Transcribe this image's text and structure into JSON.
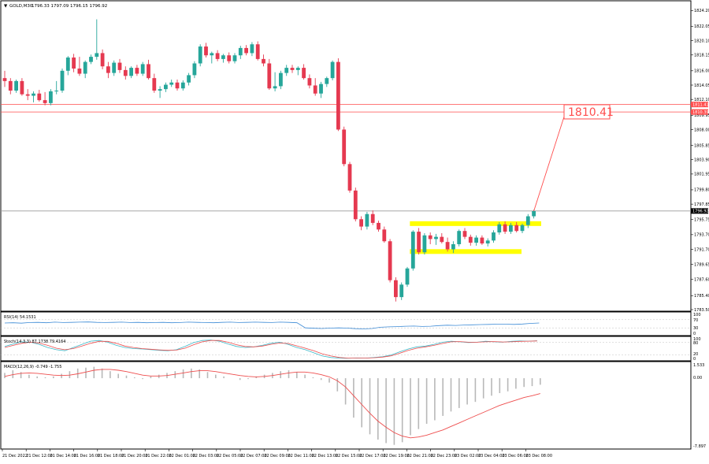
{
  "window": {
    "symbol_label": "GOLD,M30",
    "ohlc_label": "1796.33 1797.09 1796.15 1796.92"
  },
  "price_axis": {
    "ticks": [
      "1824.20",
      "1822.05",
      "1820.10",
      "1818.15",
      "1816.00",
      "1814.05",
      "1812.10",
      "1809.95",
      "1808.00",
      "1805.85",
      "1803.90",
      "1801.95",
      "1799.80",
      "1797.85",
      "1795.75",
      "1793.70",
      "1791.70",
      "1789.65",
      "1787.60",
      "1785.40",
      "1783.50"
    ],
    "current_price_label": "1796.92",
    "resistance_labels": [
      "1811.41",
      "1810.39"
    ]
  },
  "target_label": "1810.41",
  "time_axis": {
    "labels": [
      "21 Dec 2022",
      "21 Dec 12:00",
      "21 Dec 14:00",
      "21 Dec 16:00",
      "21 Dec 18:00",
      "21 Dec 20:00",
      "21 Dec 22:00",
      "22 Dec 01:00",
      "22 Dec 03:00",
      "22 Dec 05:00",
      "22 Dec 07:00",
      "22 Dec 09:00",
      "22 Dec 11:00",
      "22 Dec 13:00",
      "22 Dec 15:00",
      "22 Dec 17:00",
      "22 Dec 19:00",
      "22 Dec 21:00",
      "22 Dec 23:00",
      "23 Dec 02:00",
      "23 Dec 04:00",
      "23 Dec 06:00",
      "23 Dec 08:00"
    ]
  },
  "indicators": {
    "rsi": {
      "label": "RSI(14) 54.1531",
      "levels": [
        "100",
        "70",
        "30",
        "0"
      ]
    },
    "stoch": {
      "label": "Stoch(14,3,3) 87.1738 79.4164",
      "levels": [
        "100",
        "80",
        "20",
        "0"
      ]
    },
    "macd": {
      "label": "MACD(12,26,9) -0.749 -1.755",
      "levels": [
        "1.533",
        "0.00",
        "-7.897"
      ]
    }
  },
  "colors": {
    "bull": "#26a69a",
    "bear": "#e53950",
    "resistance": "#ff4d4d",
    "range_box": "#ffff00",
    "rsi_line": "#3d8bd6",
    "stoch_main": "#3db8c8",
    "stoch_signal": "#ee4d4d",
    "macd_hist": "#b8b8b8",
    "macd_signal": "#ee4d4d"
  },
  "chart_data": {
    "type": "candlestick",
    "symbol": "GOLD",
    "timeframe": "M30",
    "ylim": [
      1783.5,
      1825.2
    ],
    "candles": [
      {
        "o": 1815.0,
        "h": 1816.0,
        "l": 1813.8,
        "c": 1814.6
      },
      {
        "o": 1814.6,
        "h": 1815.0,
        "l": 1812.8,
        "c": 1813.3
      },
      {
        "o": 1813.3,
        "h": 1814.8,
        "l": 1813.0,
        "c": 1814.6
      },
      {
        "o": 1814.6,
        "h": 1815.0,
        "l": 1812.6,
        "c": 1812.8
      },
      {
        "o": 1812.8,
        "h": 1813.5,
        "l": 1812.0,
        "c": 1812.6
      },
      {
        "o": 1812.6,
        "h": 1813.2,
        "l": 1811.7,
        "c": 1812.9
      },
      {
        "o": 1812.9,
        "h": 1813.4,
        "l": 1811.8,
        "c": 1812.0
      },
      {
        "o": 1812.0,
        "h": 1813.1,
        "l": 1811.3,
        "c": 1811.6
      },
      {
        "o": 1811.6,
        "h": 1813.5,
        "l": 1811.3,
        "c": 1813.2
      },
      {
        "o": 1813.2,
        "h": 1814.6,
        "l": 1812.8,
        "c": 1813.3
      },
      {
        "o": 1813.3,
        "h": 1816.3,
        "l": 1813.0,
        "c": 1816.0
      },
      {
        "o": 1816.0,
        "h": 1818.0,
        "l": 1815.4,
        "c": 1817.8
      },
      {
        "o": 1817.8,
        "h": 1818.3,
        "l": 1815.8,
        "c": 1816.3
      },
      {
        "o": 1816.3,
        "h": 1817.9,
        "l": 1815.3,
        "c": 1815.6
      },
      {
        "o": 1815.6,
        "h": 1817.4,
        "l": 1815.0,
        "c": 1817.2
      },
      {
        "o": 1817.2,
        "h": 1818.2,
        "l": 1816.9,
        "c": 1817.9
      },
      {
        "o": 1817.9,
        "h": 1823.0,
        "l": 1817.5,
        "c": 1818.4
      },
      {
        "o": 1818.4,
        "h": 1818.9,
        "l": 1816.2,
        "c": 1816.6
      },
      {
        "o": 1816.6,
        "h": 1817.2,
        "l": 1815.0,
        "c": 1815.7
      },
      {
        "o": 1815.7,
        "h": 1817.4,
        "l": 1815.3,
        "c": 1817.1
      },
      {
        "o": 1817.1,
        "h": 1817.6,
        "l": 1815.7,
        "c": 1816.1
      },
      {
        "o": 1816.1,
        "h": 1816.6,
        "l": 1814.8,
        "c": 1815.3
      },
      {
        "o": 1815.3,
        "h": 1816.6,
        "l": 1815.0,
        "c": 1816.4
      },
      {
        "o": 1816.4,
        "h": 1816.8,
        "l": 1815.3,
        "c": 1815.6
      },
      {
        "o": 1815.6,
        "h": 1817.2,
        "l": 1815.3,
        "c": 1816.9
      },
      {
        "o": 1816.9,
        "h": 1817.5,
        "l": 1814.8,
        "c": 1815.0
      },
      {
        "o": 1815.0,
        "h": 1815.6,
        "l": 1813.0,
        "c": 1813.3
      },
      {
        "o": 1813.3,
        "h": 1813.9,
        "l": 1812.3,
        "c": 1813.5
      },
      {
        "o": 1813.5,
        "h": 1814.4,
        "l": 1813.1,
        "c": 1814.1
      },
      {
        "o": 1814.1,
        "h": 1814.8,
        "l": 1813.8,
        "c": 1814.4
      },
      {
        "o": 1814.4,
        "h": 1814.8,
        "l": 1813.3,
        "c": 1813.6
      },
      {
        "o": 1813.6,
        "h": 1814.7,
        "l": 1813.3,
        "c": 1814.4
      },
      {
        "o": 1814.4,
        "h": 1815.7,
        "l": 1814.0,
        "c": 1815.4
      },
      {
        "o": 1815.4,
        "h": 1817.3,
        "l": 1815.0,
        "c": 1817.0
      },
      {
        "o": 1817.0,
        "h": 1819.6,
        "l": 1816.6,
        "c": 1819.3
      },
      {
        "o": 1819.3,
        "h": 1819.8,
        "l": 1817.8,
        "c": 1818.1
      },
      {
        "o": 1818.1,
        "h": 1818.6,
        "l": 1817.0,
        "c": 1818.4
      },
      {
        "o": 1818.4,
        "h": 1818.8,
        "l": 1817.3,
        "c": 1817.6
      },
      {
        "o": 1817.6,
        "h": 1818.3,
        "l": 1817.1,
        "c": 1818.1
      },
      {
        "o": 1818.1,
        "h": 1818.5,
        "l": 1817.0,
        "c": 1817.3
      },
      {
        "o": 1817.3,
        "h": 1818.4,
        "l": 1817.0,
        "c": 1818.1
      },
      {
        "o": 1818.1,
        "h": 1819.4,
        "l": 1817.6,
        "c": 1819.1
      },
      {
        "o": 1819.1,
        "h": 1819.5,
        "l": 1818.1,
        "c": 1818.4
      },
      {
        "o": 1818.4,
        "h": 1819.9,
        "l": 1818.0,
        "c": 1819.6
      },
      {
        "o": 1819.6,
        "h": 1820.0,
        "l": 1817.4,
        "c": 1817.6
      },
      {
        "o": 1817.6,
        "h": 1818.2,
        "l": 1816.6,
        "c": 1817.0
      },
      {
        "o": 1817.0,
        "h": 1817.6,
        "l": 1813.4,
        "c": 1813.6
      },
      {
        "o": 1813.6,
        "h": 1815.8,
        "l": 1813.2,
        "c": 1813.9
      },
      {
        "o": 1813.9,
        "h": 1816.0,
        "l": 1813.5,
        "c": 1815.7
      },
      {
        "o": 1815.7,
        "h": 1816.8,
        "l": 1815.3,
        "c": 1816.4
      },
      {
        "o": 1816.4,
        "h": 1816.8,
        "l": 1815.7,
        "c": 1816.1
      },
      {
        "o": 1816.1,
        "h": 1816.6,
        "l": 1815.4,
        "c": 1816.4
      },
      {
        "o": 1816.4,
        "h": 1816.9,
        "l": 1814.8,
        "c": 1815.0
      },
      {
        "o": 1815.0,
        "h": 1815.5,
        "l": 1813.6,
        "c": 1814.0
      },
      {
        "o": 1814.0,
        "h": 1815.0,
        "l": 1812.6,
        "c": 1812.9
      },
      {
        "o": 1812.9,
        "h": 1814.5,
        "l": 1812.3,
        "c": 1814.2
      },
      {
        "o": 1814.2,
        "h": 1815.2,
        "l": 1813.8,
        "c": 1815.0
      },
      {
        "o": 1815.0,
        "h": 1817.4,
        "l": 1814.7,
        "c": 1817.2
      },
      {
        "o": 1817.2,
        "h": 1817.7,
        "l": 1807.8,
        "c": 1808.0
      },
      {
        "o": 1808.0,
        "h": 1808.4,
        "l": 1803.0,
        "c": 1803.3
      },
      {
        "o": 1803.3,
        "h": 1803.6,
        "l": 1799.4,
        "c": 1799.7
      },
      {
        "o": 1799.7,
        "h": 1800.1,
        "l": 1795.5,
        "c": 1795.8
      },
      {
        "o": 1795.8,
        "h": 1796.2,
        "l": 1794.3,
        "c": 1794.8
      },
      {
        "o": 1794.8,
        "h": 1796.8,
        "l": 1794.4,
        "c": 1796.5
      },
      {
        "o": 1796.5,
        "h": 1797.0,
        "l": 1795.0,
        "c": 1795.3
      },
      {
        "o": 1795.3,
        "h": 1795.6,
        "l": 1794.1,
        "c": 1794.4
      },
      {
        "o": 1794.4,
        "h": 1794.8,
        "l": 1792.6,
        "c": 1792.8
      },
      {
        "o": 1792.8,
        "h": 1793.1,
        "l": 1787.2,
        "c": 1787.5
      },
      {
        "o": 1787.5,
        "h": 1787.9,
        "l": 1784.6,
        "c": 1785.2
      },
      {
        "o": 1785.2,
        "h": 1787.2,
        "l": 1784.8,
        "c": 1786.9
      },
      {
        "o": 1786.9,
        "h": 1789.3,
        "l": 1786.6,
        "c": 1789.1
      },
      {
        "o": 1789.1,
        "h": 1794.3,
        "l": 1788.8,
        "c": 1794.1
      },
      {
        "o": 1794.1,
        "h": 1794.6,
        "l": 1791.0,
        "c": 1791.3
      },
      {
        "o": 1791.3,
        "h": 1793.9,
        "l": 1791.0,
        "c": 1793.6
      },
      {
        "o": 1793.6,
        "h": 1794.0,
        "l": 1792.4,
        "c": 1793.1
      },
      {
        "o": 1793.1,
        "h": 1793.8,
        "l": 1792.3,
        "c": 1793.4
      },
      {
        "o": 1793.4,
        "h": 1793.9,
        "l": 1792.5,
        "c": 1792.7
      },
      {
        "o": 1792.7,
        "h": 1793.3,
        "l": 1791.4,
        "c": 1791.7
      },
      {
        "o": 1791.7,
        "h": 1792.8,
        "l": 1791.2,
        "c": 1792.4
      },
      {
        "o": 1792.4,
        "h": 1794.4,
        "l": 1792.1,
        "c": 1794.2
      },
      {
        "o": 1794.2,
        "h": 1794.6,
        "l": 1793.1,
        "c": 1793.4
      },
      {
        "o": 1793.4,
        "h": 1793.7,
        "l": 1792.2,
        "c": 1792.6
      },
      {
        "o": 1792.6,
        "h": 1793.6,
        "l": 1792.2,
        "c": 1793.3
      },
      {
        "o": 1793.3,
        "h": 1793.6,
        "l": 1792.3,
        "c": 1792.5
      },
      {
        "o": 1792.5,
        "h": 1793.2,
        "l": 1792.1,
        "c": 1792.9
      },
      {
        "o": 1792.9,
        "h": 1794.3,
        "l": 1792.6,
        "c": 1794.0
      },
      {
        "o": 1794.0,
        "h": 1795.4,
        "l": 1793.7,
        "c": 1795.1
      },
      {
        "o": 1795.1,
        "h": 1795.5,
        "l": 1793.8,
        "c": 1794.1
      },
      {
        "o": 1794.1,
        "h": 1795.3,
        "l": 1793.8,
        "c": 1795.0
      },
      {
        "o": 1795.0,
        "h": 1795.4,
        "l": 1794.0,
        "c": 1794.2
      },
      {
        "o": 1794.2,
        "h": 1795.2,
        "l": 1793.9,
        "c": 1795.0
      },
      {
        "o": 1795.0,
        "h": 1796.5,
        "l": 1794.6,
        "c": 1796.2
      },
      {
        "o": 1796.2,
        "h": 1797.1,
        "l": 1795.9,
        "c": 1796.9
      }
    ],
    "current_price": 1796.92,
    "resistance_levels": [
      1811.41,
      1810.39
    ],
    "target_price": 1810.41,
    "range_box": {
      "start_index": 71,
      "end_index": 90,
      "top": 1795.2,
      "bottom": 1791.4
    },
    "x_labels": [
      "21 Dec 2022",
      "21 Dec 12:00",
      "21 Dec 14:00",
      "21 Dec 16:00",
      "21 Dec 18:00",
      "21 Dec 20:00",
      "21 Dec 22:00",
      "22 Dec 01:00",
      "22 Dec 03:00",
      "22 Dec 05:00",
      "22 Dec 07:00",
      "22 Dec 09:00",
      "22 Dec 11:00",
      "22 Dec 13:00",
      "22 Dec 15:00",
      "22 Dec 17:00",
      "22 Dec 19:00",
      "22 Dec 21:00",
      "22 Dec 23:00",
      "23 Dec 02:00",
      "23 Dec 04:00",
      "23 Dec 06:00",
      "23 Dec 08:00"
    ],
    "rsi": {
      "period": 14,
      "value": 54.1531,
      "levels": [
        70,
        30
      ],
      "values": [
        54,
        55,
        53,
        56,
        57,
        55,
        58,
        56,
        57,
        58,
        59,
        57,
        56,
        57,
        58,
        56,
        57,
        55,
        56,
        57,
        55,
        56,
        58,
        57,
        56,
        55,
        57,
        58,
        56,
        57,
        58,
        57,
        56,
        58,
        57,
        55,
        30,
        28,
        27,
        29,
        30,
        29,
        26,
        25,
        27,
        33,
        35,
        36,
        38,
        39,
        37,
        38,
        41,
        43,
        42,
        44,
        45,
        46,
        47,
        48,
        48,
        47,
        49,
        52,
        54
      ]
    },
    "stoch": {
      "k": 87.1738,
      "d": 79.4164,
      "levels": [
        80,
        20
      ],
      "k_values": [
        60,
        72,
        82,
        80,
        70,
        55,
        45,
        40,
        55,
        70,
        85,
        88,
        80,
        65,
        55,
        50,
        48,
        45,
        42,
        40,
        45,
        60,
        78,
        88,
        90,
        85,
        72,
        60,
        55,
        58,
        65,
        75,
        80,
        70,
        55,
        45,
        30,
        15,
        8,
        5,
        4,
        6,
        5,
        8,
        12,
        20,
        35,
        48,
        58,
        62,
        70,
        80,
        85,
        82,
        78,
        80,
        85,
        82,
        80,
        84,
        86,
        85,
        87
      ],
      "d_values": [
        55,
        65,
        75,
        80,
        76,
        65,
        52,
        45,
        50,
        62,
        75,
        84,
        84,
        75,
        62,
        55,
        50,
        47,
        44,
        42,
        43,
        52,
        68,
        82,
        88,
        88,
        80,
        68,
        60,
        58,
        62,
        70,
        76,
        74,
        63,
        52,
        40,
        25,
        15,
        8,
        5,
        5,
        5,
        7,
        10,
        16,
        28,
        42,
        52,
        58,
        65,
        74,
        82,
        83,
        80,
        80,
        82,
        83,
        81,
        82,
        84,
        85,
        86
      ]
    },
    "macd": {
      "main": -0.749,
      "signal": -1.755,
      "ylim": [
        -7.897,
        1.533
      ],
      "hist": [
        0.6,
        0.9,
        0.7,
        0.4,
        0.2,
        0.1,
        0.2,
        0.5,
        0.8,
        1.1,
        1.2,
        1.3,
        1.1,
        0.8,
        0.5,
        0.3,
        0.1,
        -0.1,
        0.2,
        0.4,
        0.6,
        0.8,
        1.0,
        1.1,
        1.0,
        0.7,
        0.4,
        0.2,
        0.0,
        -0.2,
        -0.1,
        0.2,
        0.4,
        0.6,
        0.8,
        0.9,
        0.7,
        0.4,
        0.1,
        -0.2,
        -0.5,
        -1.5,
        -3.0,
        -4.5,
        -5.6,
        -6.4,
        -7.0,
        -7.4,
        -7.6,
        -7.3,
        -6.5,
        -5.8,
        -5.2,
        -4.8,
        -4.3,
        -3.8,
        -3.4,
        -3.0,
        -2.7,
        -2.3,
        -2.0,
        -1.7,
        -1.5,
        -1.2,
        -1.0,
        -0.9,
        -0.749
      ],
      "signal_values": [
        0.2,
        0.4,
        0.55,
        0.6,
        0.55,
        0.45,
        0.35,
        0.3,
        0.35,
        0.5,
        0.7,
        0.9,
        1.0,
        1.0,
        0.9,
        0.75,
        0.55,
        0.35,
        0.25,
        0.25,
        0.3,
        0.45,
        0.6,
        0.75,
        0.85,
        0.85,
        0.75,
        0.6,
        0.45,
        0.3,
        0.2,
        0.15,
        0.2,
        0.3,
        0.45,
        0.6,
        0.7,
        0.7,
        0.6,
        0.4,
        0.15,
        -0.3,
        -1.0,
        -2.0,
        -3.0,
        -4.0,
        -4.9,
        -5.6,
        -6.2,
        -6.6,
        -6.8,
        -6.7,
        -6.5,
        -6.2,
        -5.9,
        -5.5,
        -5.1,
        -4.7,
        -4.3,
        -3.9,
        -3.5,
        -3.1,
        -2.8,
        -2.5,
        -2.2,
        -2.0,
        -1.755
      ]
    }
  }
}
